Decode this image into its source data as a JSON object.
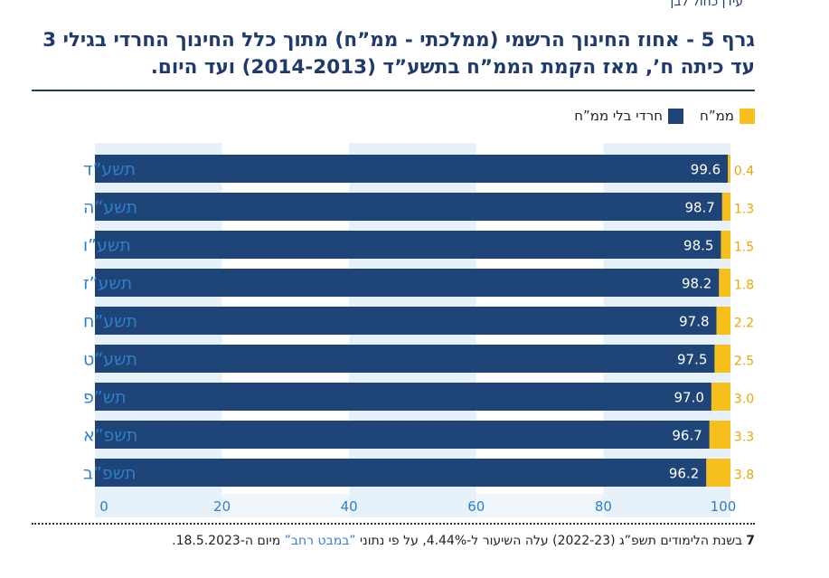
{
  "header_clip": "עידן כחול לבן",
  "title": "גרף 5 - אחוז החינוך הרשמי (ממלכתי - ממ”ח) מתוך כלל החינוך החרדי בגילי 3 עד כיתה ח’, מאז הקמת הממ”ח בתשע”ד (2014-2013) ועד היום.",
  "legend": {
    "mamach": "ממ”ח",
    "haredi": "חרדי בלי ממ”ח"
  },
  "colors": {
    "haredi": "#1f4477",
    "mamach": "#f6bf1c",
    "band": "#e6f1fa",
    "title": "#1f3b6e",
    "label_value": "#e8a800"
  },
  "chart_data": {
    "type": "bar",
    "orientation": "horizontal",
    "stacked": true,
    "categories": [
      "תשע”ד",
      "תשע”ה",
      "תשע”ו",
      "תשע”ז",
      "תשע”ח",
      "תשע”ט",
      "תש”פ",
      "תשפ”א",
      "תשפ”ב"
    ],
    "series": [
      {
        "name": "חרדי בלי ממ”ח",
        "values": [
          99.6,
          98.7,
          98.5,
          98.2,
          97.8,
          97.5,
          97.0,
          96.7,
          96.2
        ],
        "labels": [
          "99.6",
          "98.7",
          "98.5",
          "98.2",
          "97.8",
          "97.5",
          "97.0",
          "96.7",
          "96.2"
        ]
      },
      {
        "name": "ממ”ח",
        "values": [
          0.4,
          1.3,
          1.5,
          1.8,
          2.2,
          2.5,
          3.0,
          3.3,
          3.8
        ],
        "labels": [
          "0.4",
          "1.3",
          "1.5",
          "1.8",
          "2.2",
          "2.5",
          "3.0",
          "3.3",
          "3.8"
        ]
      }
    ],
    "xlim": [
      0,
      100
    ],
    "xticks": [
      "0",
      "20",
      "40",
      "60",
      "80",
      "100"
    ],
    "tick_values": [
      0,
      20,
      40,
      60,
      80,
      100
    ]
  },
  "footnote": {
    "mark": "7",
    "text_before": "בשנת הלימודים תשפ”ג (2022-23) עלה השיעור ל-4.44%, על פי נתוני ",
    "link": "”במבט רחב”",
    "text_after": " מיום ה-18.5.2023."
  }
}
